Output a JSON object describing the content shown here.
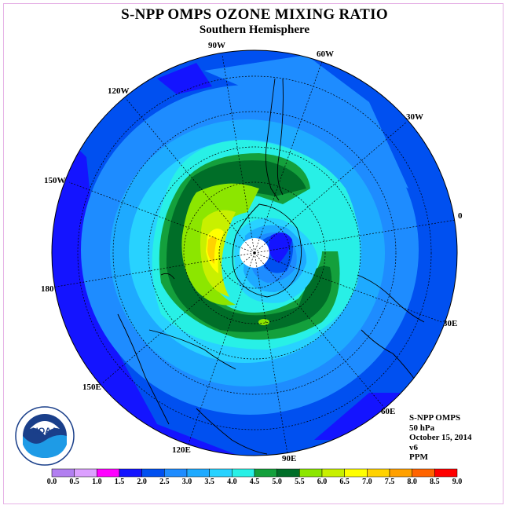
{
  "title": "S-NPP OMPS OZONE MIXING RATIO",
  "subtitle": "Southern Hemisphere",
  "longitude_labels": [
    "90W",
    "60W",
    "30W",
    "0",
    "30E",
    "60E",
    "90E",
    "120E",
    "150E",
    "180",
    "150W",
    "120W"
  ],
  "info": {
    "instrument": "S-NPP OMPS",
    "level": "50 hPa",
    "date": "October 15, 2014",
    "version": "v6",
    "units": "PPM"
  },
  "logo": {
    "text": "NOAA"
  },
  "colorbar": {
    "ticks": [
      "0.0",
      "0.5",
      "1.0",
      "1.5",
      "2.0",
      "2.5",
      "3.0",
      "3.5",
      "4.0",
      "4.5",
      "5.0",
      "5.5",
      "6.0",
      "6.5",
      "7.0",
      "7.5",
      "8.0",
      "8.5",
      "9.0"
    ],
    "colors": [
      "#b27ff0",
      "#dca0ff",
      "#ff00ff",
      "#1414ff",
      "#0050f0",
      "#1e8cff",
      "#1eaaff",
      "#28d2ff",
      "#28f0e6",
      "#14a03c",
      "#006e28",
      "#8ce600",
      "#c8f000",
      "#ffff00",
      "#ffd200",
      "#ffa000",
      "#ff6400",
      "#ff0000",
      "#a05a3c"
    ]
  }
}
